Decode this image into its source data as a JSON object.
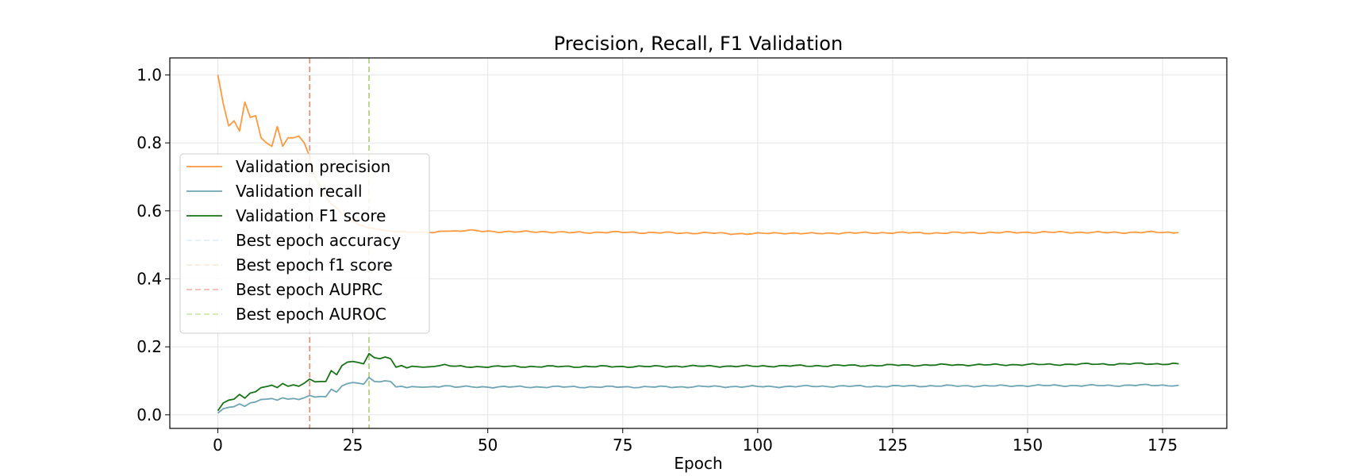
{
  "chart_data": {
    "type": "line",
    "title": "Precision, Recall, F1 Validation",
    "xlabel": "Epoch",
    "ylabel": "",
    "xlim": [
      -8.9,
      186.9
    ],
    "ylim": [
      -0.04,
      1.05
    ],
    "xticks": [
      0,
      25,
      50,
      75,
      100,
      125,
      150,
      175
    ],
    "yticks": [
      0.0,
      0.2,
      0.4,
      0.6,
      0.8,
      1.0
    ],
    "ytick_labels": [
      "0.0",
      "0.2",
      "0.4",
      "0.6",
      "0.8",
      "1.0"
    ],
    "grid": true,
    "legend_position": "center-left",
    "series": [
      {
        "name": "Validation precision",
        "color": "#ff7f0e",
        "style": "solid",
        "alpha": 0.8,
        "keypoints": [
          [
            0,
            1.0
          ],
          [
            1,
            0.915
          ],
          [
            2,
            0.85
          ],
          [
            3,
            0.865
          ],
          [
            4,
            0.835
          ],
          [
            5,
            0.92
          ],
          [
            6,
            0.875
          ],
          [
            7,
            0.88
          ],
          [
            8,
            0.815
          ],
          [
            9,
            0.8
          ],
          [
            10,
            0.79
          ],
          [
            11,
            0.848
          ],
          [
            12,
            0.79
          ],
          [
            13,
            0.815
          ],
          [
            14,
            0.815
          ],
          [
            15,
            0.82
          ],
          [
            16,
            0.8
          ],
          [
            17,
            0.76
          ],
          [
            18,
            0.7
          ],
          [
            19,
            0.67
          ],
          [
            20,
            0.64
          ],
          [
            21,
            0.62
          ],
          [
            22,
            0.61
          ],
          [
            23,
            0.59
          ],
          [
            24,
            0.58
          ],
          [
            25,
            0.57
          ],
          [
            26,
            0.56
          ],
          [
            27,
            0.555
          ],
          [
            28,
            0.55
          ],
          [
            30,
            0.545
          ],
          [
            32,
            0.54
          ],
          [
            35,
            0.538
          ],
          [
            38,
            0.537
          ],
          [
            40,
            0.536
          ],
          [
            42,
            0.543
          ],
          [
            44,
            0.54
          ],
          [
            46,
            0.542
          ],
          [
            50,
            0.54
          ],
          [
            55,
            0.538
          ],
          [
            60,
            0.539
          ],
          [
            65,
            0.536
          ],
          [
            70,
            0.537
          ],
          [
            75,
            0.537
          ],
          [
            80,
            0.536
          ],
          [
            85,
            0.535
          ],
          [
            90,
            0.535
          ],
          [
            95,
            0.533
          ],
          [
            100,
            0.533
          ],
          [
            105,
            0.535
          ],
          [
            110,
            0.533
          ],
          [
            115,
            0.535
          ],
          [
            120,
            0.535
          ],
          [
            125,
            0.536
          ],
          [
            130,
            0.535
          ],
          [
            135,
            0.535
          ],
          [
            140,
            0.536
          ],
          [
            145,
            0.536
          ],
          [
            150,
            0.537
          ],
          [
            155,
            0.537
          ],
          [
            160,
            0.537
          ],
          [
            165,
            0.536
          ],
          [
            170,
            0.537
          ],
          [
            175,
            0.537
          ],
          [
            178,
            0.536
          ]
        ]
      },
      {
        "name": "Validation recall",
        "color": "#4a8ea3",
        "style": "solid",
        "alpha": 0.8,
        "keypoints": [
          [
            0,
            0.005
          ],
          [
            1,
            0.018
          ],
          [
            2,
            0.022
          ],
          [
            3,
            0.024
          ],
          [
            4,
            0.032
          ],
          [
            5,
            0.025
          ],
          [
            6,
            0.035
          ],
          [
            7,
            0.038
          ],
          [
            8,
            0.045
          ],
          [
            9,
            0.046
          ],
          [
            10,
            0.048
          ],
          [
            11,
            0.043
          ],
          [
            12,
            0.05
          ],
          [
            13,
            0.046
          ],
          [
            14,
            0.048
          ],
          [
            15,
            0.045
          ],
          [
            16,
            0.05
          ],
          [
            17,
            0.057
          ],
          [
            18,
            0.052
          ],
          [
            19,
            0.054
          ],
          [
            20,
            0.053
          ],
          [
            21,
            0.075
          ],
          [
            22,
            0.067
          ],
          [
            23,
            0.085
          ],
          [
            24,
            0.092
          ],
          [
            25,
            0.095
          ],
          [
            26,
            0.093
          ],
          [
            27,
            0.09
          ],
          [
            28,
            0.11
          ],
          [
            29,
            0.098
          ],
          [
            30,
            0.097
          ],
          [
            31,
            0.1
          ],
          [
            32,
            0.098
          ],
          [
            33,
            0.082
          ],
          [
            34,
            0.084
          ],
          [
            35,
            0.08
          ],
          [
            36,
            0.083
          ],
          [
            38,
            0.081
          ],
          [
            40,
            0.083
          ],
          [
            42,
            0.086
          ],
          [
            44,
            0.082
          ],
          [
            46,
            0.082
          ],
          [
            50,
            0.082
          ],
          [
            55,
            0.082
          ],
          [
            60,
            0.082
          ],
          [
            65,
            0.082
          ],
          [
            70,
            0.082
          ],
          [
            75,
            0.082
          ],
          [
            80,
            0.082
          ],
          [
            85,
            0.082
          ],
          [
            90,
            0.083
          ],
          [
            95,
            0.083
          ],
          [
            100,
            0.083
          ],
          [
            105,
            0.083
          ],
          [
            110,
            0.084
          ],
          [
            115,
            0.084
          ],
          [
            120,
            0.084
          ],
          [
            125,
            0.084
          ],
          [
            130,
            0.085
          ],
          [
            135,
            0.085
          ],
          [
            140,
            0.085
          ],
          [
            145,
            0.085
          ],
          [
            150,
            0.086
          ],
          [
            155,
            0.086
          ],
          [
            160,
            0.086
          ],
          [
            165,
            0.086
          ],
          [
            170,
            0.087
          ],
          [
            175,
            0.087
          ],
          [
            178,
            0.087
          ]
        ]
      },
      {
        "name": "Validation F1 score",
        "color": "#006400",
        "style": "solid",
        "alpha": 0.9,
        "keypoints": [
          [
            0,
            0.012
          ],
          [
            1,
            0.035
          ],
          [
            2,
            0.043
          ],
          [
            3,
            0.046
          ],
          [
            4,
            0.06
          ],
          [
            5,
            0.049
          ],
          [
            6,
            0.064
          ],
          [
            7,
            0.068
          ],
          [
            8,
            0.08
          ],
          [
            9,
            0.083
          ],
          [
            10,
            0.087
          ],
          [
            11,
            0.08
          ],
          [
            12,
            0.092
          ],
          [
            13,
            0.084
          ],
          [
            14,
            0.088
          ],
          [
            15,
            0.084
          ],
          [
            16,
            0.093
          ],
          [
            17,
            0.105
          ],
          [
            18,
            0.097
          ],
          [
            19,
            0.098
          ],
          [
            20,
            0.098
          ],
          [
            21,
            0.13
          ],
          [
            22,
            0.118
          ],
          [
            23,
            0.145
          ],
          [
            24,
            0.155
          ],
          [
            25,
            0.157
          ],
          [
            26,
            0.154
          ],
          [
            27,
            0.15
          ],
          [
            28,
            0.18
          ],
          [
            29,
            0.168
          ],
          [
            30,
            0.165
          ],
          [
            31,
            0.17
          ],
          [
            32,
            0.165
          ],
          [
            33,
            0.14
          ],
          [
            34,
            0.145
          ],
          [
            35,
            0.138
          ],
          [
            36,
            0.143
          ],
          [
            38,
            0.14
          ],
          [
            40,
            0.142
          ],
          [
            42,
            0.147
          ],
          [
            44,
            0.142
          ],
          [
            46,
            0.141
          ],
          [
            50,
            0.142
          ],
          [
            55,
            0.142
          ],
          [
            60,
            0.142
          ],
          [
            65,
            0.142
          ],
          [
            70,
            0.142
          ],
          [
            75,
            0.142
          ],
          [
            80,
            0.142
          ],
          [
            85,
            0.143
          ],
          [
            90,
            0.143
          ],
          [
            95,
            0.143
          ],
          [
            100,
            0.143
          ],
          [
            105,
            0.144
          ],
          [
            110,
            0.144
          ],
          [
            115,
            0.145
          ],
          [
            120,
            0.145
          ],
          [
            125,
            0.146
          ],
          [
            130,
            0.146
          ],
          [
            135,
            0.147
          ],
          [
            140,
            0.147
          ],
          [
            145,
            0.147
          ],
          [
            150,
            0.148
          ],
          [
            155,
            0.148
          ],
          [
            160,
            0.149
          ],
          [
            165,
            0.149
          ],
          [
            170,
            0.15
          ],
          [
            175,
            0.15
          ],
          [
            178,
            0.15
          ]
        ]
      }
    ],
    "vlines": [
      {
        "name": "Best epoch accuracy",
        "x": 28,
        "color": "#9ecae1",
        "alpha": 0.5
      },
      {
        "name": "Best epoch f1 score",
        "x": 28,
        "color": "#fdbb84",
        "alpha": 0.5
      },
      {
        "name": "Best epoch AUPRC",
        "x": 17,
        "color": "#e6816e",
        "alpha": 0.9
      },
      {
        "name": "Best epoch AUROC",
        "x": 28,
        "color": "#a6d96a",
        "alpha": 0.9
      }
    ]
  }
}
